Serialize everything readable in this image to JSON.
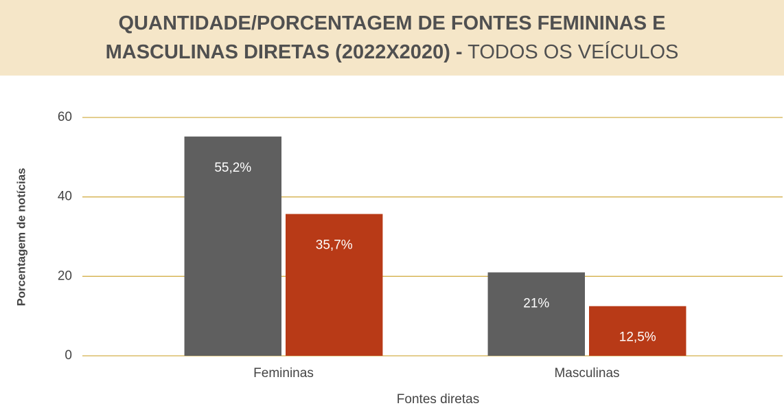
{
  "chart_data": {
    "type": "bar",
    "title_parts": [
      "QUANTIDADE/PORCENTAGEM DE FONTES FEMININAS E MASCULINAS DIRETAS (2022X2020) -",
      "TODOS OS VEÍCULOS"
    ],
    "categories": [
      "Femininas",
      "Masculinas"
    ],
    "series": [
      {
        "color": "#5f5f5f",
        "values": [
          55.2,
          21
        ],
        "value_labels": [
          "55,2%",
          "21%"
        ]
      },
      {
        "color": "#b83a17",
        "values": [
          35.7,
          12.5
        ],
        "value_labels": [
          "35,7%",
          "12,5%"
        ]
      }
    ],
    "xlabel": "Fontes diretas",
    "ylabel": "Porcentagem de notícias",
    "ylim": [
      0,
      60
    ],
    "yticks": [
      0,
      20,
      40,
      60
    ],
    "grid": true,
    "grid_color": "#d4b04a"
  }
}
